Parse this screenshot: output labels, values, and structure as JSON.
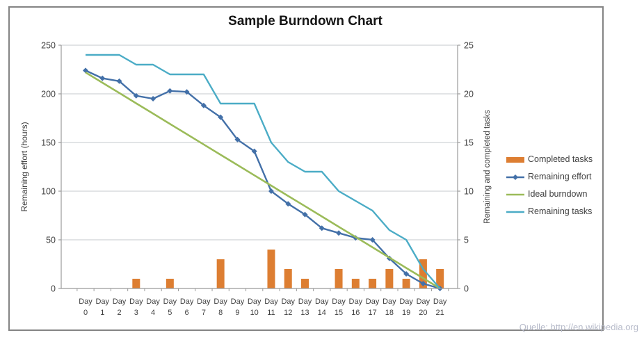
{
  "title": "Sample Burndown Chart",
  "source_note": "Quelle: http://en.wikipedia.org",
  "left_axis": {
    "title": "Remaining effort (hours)",
    "ticks": [
      0,
      50,
      100,
      150,
      200,
      250
    ],
    "range": [
      0,
      250
    ]
  },
  "right_axis": {
    "title": "Remaining and completed tasks",
    "ticks": [
      0,
      5,
      10,
      15,
      20,
      25
    ],
    "range": [
      0,
      25
    ]
  },
  "legend": {
    "items": [
      {
        "label": "Completed tasks",
        "swatch": "bar"
      },
      {
        "label": "Remaining effort",
        "swatch": "line-diamond"
      },
      {
        "label": "Ideal burndown",
        "swatch": "line"
      },
      {
        "label": "Remaining tasks",
        "swatch": "line"
      }
    ]
  },
  "colors": {
    "completed_tasks": "#dd7e32",
    "remaining_effort": "#4370a8",
    "ideal_burndown": "#9bbb59",
    "remaining_tasks": "#4bacc6",
    "gridline": "#c6c9ce",
    "axis_line": "#9b9b9b",
    "tick_text": "#3f3f3f",
    "frame_border": "#848484",
    "title_text": "#141414",
    "source_note_text": "#b7bbca"
  },
  "chart_data": {
    "type": "bar",
    "combo": true,
    "title": "Sample Burndown Chart",
    "categories": [
      "Day 0",
      "Day 1",
      "Day 2",
      "Day 3",
      "Day 4",
      "Day 5",
      "Day 6",
      "Day 7",
      "Day 8",
      "Day 9",
      "Day 10",
      "Day 11",
      "Day 12",
      "Day 13",
      "Day 14",
      "Day 15",
      "Day 16",
      "Day 17",
      "Day 18",
      "Day 19",
      "Day 20",
      "Day 21"
    ],
    "left_ylabel": "Remaining effort (hours)",
    "right_ylabel": "Remaining and completed tasks",
    "left_ylim": [
      0,
      250
    ],
    "right_ylim": [
      0,
      25
    ],
    "grid": true,
    "legend_position": "right",
    "series": [
      {
        "name": "Completed tasks",
        "type": "bar",
        "axis": "right",
        "color": "#dd7e32",
        "values": [
          0,
          0,
          0,
          1,
          0,
          1,
          0,
          0,
          3,
          0,
          0,
          4,
          2,
          1,
          0,
          2,
          1,
          1,
          2,
          1,
          3,
          2
        ]
      },
      {
        "name": "Remaining effort",
        "type": "line",
        "marker": "diamond",
        "axis": "left",
        "color": "#4370a8",
        "values": [
          224,
          216,
          213,
          198,
          195,
          203,
          202,
          188,
          176,
          153,
          141,
          100,
          87,
          76,
          62,
          57,
          52,
          50,
          31,
          15,
          5,
          0
        ]
      },
      {
        "name": "Ideal burndown",
        "type": "line",
        "marker": "none",
        "axis": "left",
        "color": "#9bbb59",
        "values": [
          222,
          211.4,
          200.9,
          190.3,
          179.7,
          169.1,
          158.6,
          148,
          137.4,
          126.9,
          116.3,
          105.7,
          95.1,
          84.6,
          74,
          63.4,
          52.9,
          42.3,
          31.7,
          21.1,
          10.6,
          0
        ]
      },
      {
        "name": "Remaining tasks",
        "type": "line",
        "marker": "none",
        "axis": "right",
        "color": "#4bacc6",
        "values": [
          24,
          24,
          24,
          23,
          23,
          22,
          22,
          22,
          19,
          19,
          19,
          15,
          13,
          12,
          12,
          10,
          9,
          8,
          6,
          5,
          2,
          0
        ]
      }
    ]
  }
}
